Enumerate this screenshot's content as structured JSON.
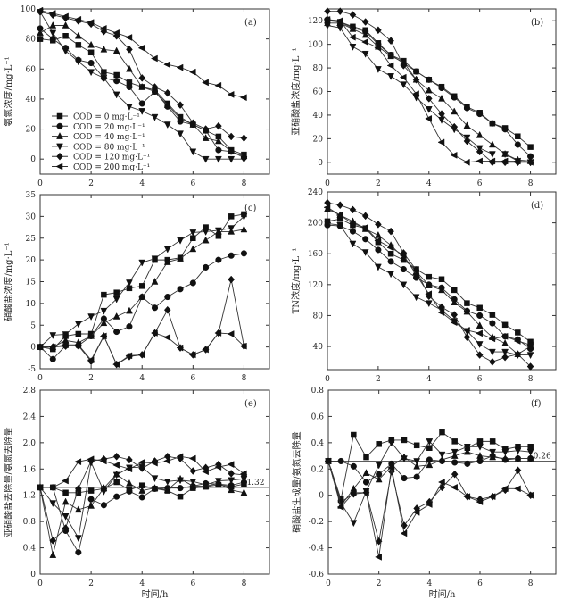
{
  "chart_data": [
    {
      "panel": "(a)",
      "type": "line",
      "ylabel": "氨氮浓度/mg·L⁻¹",
      "xlabel": "",
      "xlim": [
        0,
        9
      ],
      "ylim": [
        -10,
        100
      ],
      "xticks": [
        0,
        2,
        4,
        6,
        8
      ],
      "yticks": [
        0,
        20,
        40,
        60,
        80,
        100
      ],
      "grid": false,
      "legend": "bottom-left",
      "x": [
        0,
        0.5,
        1,
        1.5,
        2,
        2.5,
        3,
        3.5,
        4,
        4.5,
        5,
        5.5,
        6,
        6.5,
        7,
        7.5,
        8
      ],
      "series": [
        {
          "name": "COD = 0 mg·L⁻¹",
          "marker": "square",
          "values": [
            80,
            79,
            82,
            76,
            71,
            58,
            56,
            51,
            48,
            46,
            37,
            28,
            23,
            19,
            15,
            6,
            3
          ]
        },
        {
          "name": "COD = 20 mg·L⁻¹",
          "marker": "circle",
          "values": [
            87,
            80,
            74,
            66,
            64,
            54,
            52,
            48,
            37,
            45,
            35,
            25,
            23,
            19,
            6,
            5,
            1
          ]
        },
        {
          "name": "COD = 40 mg·L⁻¹",
          "marker": "triangle-up",
          "values": [
            84,
            89,
            89,
            82,
            76,
            73,
            72,
            60,
            48,
            45,
            36,
            27,
            23,
            14,
            12,
            5,
            2
          ]
        },
        {
          "name": "COD = 80 mg·L⁻¹",
          "marker": "triangle-down",
          "values": [
            98,
            84,
            72,
            65,
            58,
            54,
            43,
            35,
            32,
            28,
            23,
            17,
            5,
            0,
            0,
            0,
            0
          ]
        },
        {
          "name": "COD = 120 mg·L⁻¹",
          "marker": "diamond",
          "values": [
            98,
            96,
            94,
            92,
            90,
            85,
            82,
            73,
            54,
            48,
            44,
            36,
            24,
            20,
            22,
            15,
            14
          ]
        },
        {
          "name": "COD = 200 mg·L⁻¹",
          "marker": "triangle-left",
          "values": [
            99,
            97,
            95,
            93,
            91,
            87,
            84,
            81,
            74,
            67,
            63,
            61,
            58,
            51,
            49,
            43,
            41
          ]
        }
      ]
    },
    {
      "panel": "(b)",
      "type": "line",
      "ylabel": "亚硝酸盐浓度/mg·L⁻¹",
      "xlabel": "",
      "xlim": [
        0,
        9
      ],
      "ylim": [
        -10,
        130
      ],
      "xticks": [
        0,
        2,
        4,
        6,
        8
      ],
      "yticks": [
        0,
        20,
        40,
        60,
        80,
        100,
        120
      ],
      "grid": false,
      "x": [
        0,
        0.5,
        1,
        1.5,
        2,
        2.5,
        3,
        3.5,
        4,
        4.5,
        5,
        5.5,
        6,
        6.5,
        7,
        7.5,
        8
      ],
      "series": [
        {
          "marker": "square",
          "values": [
            120,
            119,
            115,
            112,
            101,
            91,
            86,
            77,
            70,
            64,
            56,
            47,
            42,
            33,
            29,
            22,
            13
          ]
        },
        {
          "marker": "circle",
          "values": [
            121,
            119,
            114,
            111,
            100,
            91,
            84,
            77,
            70,
            63,
            55,
            46,
            41,
            33,
            28,
            15,
            5
          ]
        },
        {
          "marker": "triangle-up",
          "values": [
            118,
            118,
            113,
            108,
            98,
            90,
            85,
            70,
            61,
            54,
            43,
            31,
            23,
            15,
            7,
            2,
            1
          ]
        },
        {
          "marker": "triangle-down",
          "values": [
            116,
            114,
            98,
            92,
            79,
            73,
            66,
            55,
            45,
            36,
            28,
            21,
            12,
            7,
            7,
            1,
            0
          ]
        },
        {
          "marker": "diamond",
          "values": [
            128,
            128,
            125,
            119,
            112,
            103,
            82,
            70,
            54,
            41,
            30,
            18,
            9,
            0,
            0,
            0,
            0
          ]
        },
        {
          "marker": "triangle-left",
          "values": [
            121,
            120,
            106,
            102,
            97,
            82,
            72,
            58,
            37,
            17,
            6,
            0,
            1,
            1,
            1,
            1,
            0
          ]
        }
      ]
    },
    {
      "panel": "(c)",
      "type": "line",
      "ylabel": "硝酸盐浓度/mg·L⁻¹",
      "xlabel": "",
      "xlim": [
        0,
        9
      ],
      "ylim": [
        -5,
        35
      ],
      "xticks": [
        0,
        2,
        4,
        6,
        8
      ],
      "yticks": [
        -5,
        0,
        5,
        10,
        15,
        20,
        25,
        30,
        35
      ],
      "grid": false,
      "x": [
        0,
        0.5,
        1,
        1.5,
        2,
        2.5,
        3,
        3.5,
        4,
        4.5,
        5,
        5.5,
        6,
        6.5,
        7,
        7.5,
        8
      ],
      "series": [
        {
          "marker": "square",
          "values": [
            0,
            -0.5,
            2.5,
            3,
            3,
            12,
            12.5,
            13.5,
            14,
            20,
            20,
            20.5,
            25,
            27.5,
            25.5,
            30,
            30.5
          ]
        },
        {
          "marker": "circle",
          "values": [
            0,
            -2.8,
            0.3,
            0.3,
            2.5,
            6.5,
            3.5,
            4.7,
            11.5,
            9,
            11.5,
            13.3,
            14.7,
            18.3,
            20,
            21,
            21.5
          ]
        },
        {
          "marker": "triangle-up",
          "values": [
            0,
            0,
            1.5,
            1,
            2.5,
            5.5,
            7,
            8.3,
            11.5,
            15,
            19.5,
            20.3,
            22.5,
            24.5,
            26.5,
            26.5,
            27
          ]
        },
        {
          "marker": "triangle-down",
          "values": [
            0,
            2.7,
            2.9,
            5.3,
            7,
            8.3,
            11,
            14.8,
            19.4,
            20.3,
            22.5,
            24.5,
            26.3,
            26.5,
            26.8,
            27.3,
            30
          ]
        },
        {
          "marker": "diamond",
          "values": [
            0,
            0,
            0.2,
            0.3,
            -3.3,
            2.5,
            -4,
            -2.2,
            -1.8,
            3.2,
            8.5,
            -0.2,
            -1.8,
            -0.6,
            3.2,
            15.5,
            0.2
          ]
        },
        {
          "marker": "triangle-left",
          "values": [
            0,
            0,
            0.5,
            0.5,
            -3,
            2.5,
            -4,
            -2,
            -1.8,
            3.2,
            2.2,
            -0.2,
            -1.8,
            -0.6,
            3.2,
            3,
            0.2
          ]
        }
      ]
    },
    {
      "panel": "(d)",
      "type": "line",
      "ylabel": "TN浓度/mg·L⁻¹",
      "xlabel": "",
      "xlim": [
        0,
        9
      ],
      "ylim": [
        10,
        240
      ],
      "xticks": [
        0,
        2,
        4,
        6,
        8
      ],
      "yticks": [
        40,
        80,
        120,
        160,
        200,
        240
      ],
      "grid": false,
      "x": [
        0,
        0.5,
        1,
        1.5,
        2,
        2.5,
        3,
        3.5,
        4,
        4.5,
        5,
        5.5,
        6,
        6.5,
        7,
        7.5,
        8
      ],
      "series": [
        {
          "marker": "square",
          "values": [
            202,
            205,
            197,
            193,
            175,
            160,
            152,
            140,
            130,
            127,
            113,
            96,
            90,
            81,
            68,
            58,
            46
          ]
        },
        {
          "marker": "circle",
          "values": [
            197,
            196,
            189,
            179,
            165,
            150,
            140,
            129,
            120,
            116,
            101,
            86,
            80,
            70,
            53,
            49,
            37
          ]
        },
        {
          "marker": "triangle-up",
          "values": [
            218,
            210,
            202,
            192,
            184,
            171,
            155,
            137,
            119,
            113,
            97,
            85,
            67,
            52,
            44,
            30,
            40
          ]
        },
        {
          "marker": "triangle-down",
          "values": [
            199,
            197,
            173,
            162,
            143,
            134,
            120,
            104,
            96,
            87,
            73,
            60,
            43,
            33,
            33,
            29,
            29
          ]
        },
        {
          "marker": "diamond",
          "values": [
            226,
            223,
            217,
            209,
            198,
            189,
            161,
            139,
            105,
            91,
            81,
            52,
            29,
            20,
            26,
            30,
            14
          ]
        },
        {
          "marker": "triangle-left",
          "values": [
            220,
            210,
            199,
            194,
            177,
            168,
            158,
            133,
            108,
            84,
            71,
            61,
            57,
            50,
            53,
            47,
            42
          ]
        }
      ]
    },
    {
      "panel": "(e)",
      "type": "line",
      "ylabel": "亚硝酸盐去除量/氨氮去除量",
      "xlabel": "时间/h",
      "xlim": [
        0,
        9
      ],
      "ylim": [
        0,
        2.8
      ],
      "xticks": [
        0,
        2,
        4,
        6,
        8
      ],
      "yticks": [
        0,
        0.4,
        0.8,
        1.2,
        1.6,
        2.0,
        2.4,
        2.8
      ],
      "ytick_labels": [
        "0",
        "0.4",
        "0.8",
        "1.2",
        "1.6",
        "2.0",
        "2.4",
        "2.8"
      ],
      "grid": false,
      "reference_line": {
        "value": 1.32,
        "label": "1.32"
      },
      "x": [
        0,
        0.5,
        1,
        1.5,
        2,
        2.5,
        3,
        3.5,
        4,
        4.5,
        5,
        5.5,
        6,
        6.5,
        7,
        7.5,
        8
      ],
      "series": [
        {
          "marker": "square",
          "values": [
            1.32,
            1.32,
            1.24,
            1.24,
            1.27,
            1.3,
            1.4,
            1.28,
            1.35,
            1.3,
            1.27,
            1.18,
            1.31,
            1.33,
            1.36,
            1.33,
            1.37
          ]
        },
        {
          "marker": "circle",
          "values": [
            1.32,
            1.32,
            0.66,
            0.33,
            1.14,
            1.05,
            1.18,
            1.26,
            1.17,
            1.3,
            1.31,
            1.31,
            1.34,
            1.38,
            1.37,
            1.35,
            1.4
          ]
        },
        {
          "marker": "triangle-up",
          "values": [
            1.32,
            0.29,
            1.1,
            0.98,
            1.04,
            1.31,
            1.52,
            1.38,
            1.27,
            1.31,
            1.28,
            1.45,
            1.34,
            1.34,
            1.38,
            1.28,
            1.24
          ]
        },
        {
          "marker": "triangle-down",
          "values": [
            1.32,
            1.08,
            0.88,
            0.55,
            1.7,
            1.26,
            1.51,
            1.62,
            1.63,
            1.46,
            1.41,
            1.43,
            1.41,
            1.36,
            1.42,
            1.43,
            1.45
          ]
        },
        {
          "marker": "diamond",
          "values": [
            1.32,
            0.51,
            0.7,
            1.3,
            1.72,
            1.75,
            1.79,
            1.74,
            1.61,
            1.72,
            1.79,
            1.76,
            1.57,
            1.62,
            1.67,
            1.53,
            1.51
          ]
        },
        {
          "marker": "triangle-left",
          "values": [
            1.32,
            1.32,
            1.42,
            1.71,
            1.75,
            1.72,
            1.66,
            1.6,
            1.7,
            1.69,
            1.72,
            1.79,
            1.76,
            1.56,
            1.63,
            1.67,
            1.53
          ]
        }
      ]
    },
    {
      "panel": "(f)",
      "type": "line",
      "ylabel": "硝酸盐生成量/氨氮去除量",
      "xlabel": "时间/h",
      "xlim": [
        0,
        9
      ],
      "ylim": [
        -0.6,
        0.8
      ],
      "xticks": [
        0,
        2,
        4,
        6,
        8
      ],
      "yticks": [
        -0.6,
        -0.4,
        -0.2,
        0,
        0.2,
        0.4,
        0.6,
        0.8
      ],
      "ytick_labels": [
        "-0.6",
        "-0.4",
        "-0.2",
        "0",
        "0.2",
        "0.4",
        "0.6",
        "0.8"
      ],
      "grid": false,
      "reference_line": {
        "value": 0.26,
        "label": "0.26"
      },
      "x": [
        0,
        0.5,
        1,
        1.5,
        2,
        2.5,
        3,
        3.5,
        4,
        4.5,
        5,
        5.5,
        6,
        6.5,
        7,
        7.5,
        8
      ],
      "series": [
        {
          "marker": "square",
          "values": [
            0.26,
            -0.03,
            0.46,
            0.29,
            0.39,
            0.42,
            0.42,
            0.38,
            0.36,
            0.48,
            0.41,
            0.36,
            0.41,
            0.41,
            0.35,
            0.37,
            0.37
          ]
        },
        {
          "marker": "circle",
          "values": [
            0.26,
            0.26,
            0.22,
            0.1,
            0.16,
            0.24,
            0.13,
            0.14,
            0.27,
            0.26,
            0.25,
            0.24,
            0.26,
            0.3,
            0.27,
            0.28,
            0.28
          ]
        },
        {
          "marker": "triangle-up",
          "values": [
            0.26,
            -0.08,
            0.05,
            0.17,
            0.12,
            0.22,
            0.29,
            0.22,
            0.23,
            0.27,
            0.3,
            0.33,
            0.3,
            0.29,
            0.28,
            0.28,
            0.28
          ]
        },
        {
          "marker": "triangle-down",
          "values": [
            0.26,
            -0.06,
            -0.21,
            0.03,
            0.23,
            0.4,
            0.28,
            0.26,
            0.41,
            0.31,
            0.33,
            0.37,
            0.37,
            0.33,
            0.33,
            0.34,
            0.33
          ]
        },
        {
          "marker": "diamond",
          "values": [
            0.26,
            -0.05,
            0.01,
            0.02,
            -0.35,
            0.18,
            -0.23,
            -0.1,
            -0.05,
            0.06,
            0.16,
            -0.01,
            -0.03,
            -0.01,
            0.04,
            0.19,
            0.0
          ]
        },
        {
          "marker": "triangle-left",
          "values": [
            0.26,
            -0.09,
            0.02,
            0.02,
            -0.47,
            0.21,
            -0.29,
            -0.13,
            -0.07,
            0.1,
            0.06,
            -0.01,
            -0.05,
            -0.01,
            0.05,
            0.05,
            0.0
          ]
        }
      ]
    }
  ]
}
